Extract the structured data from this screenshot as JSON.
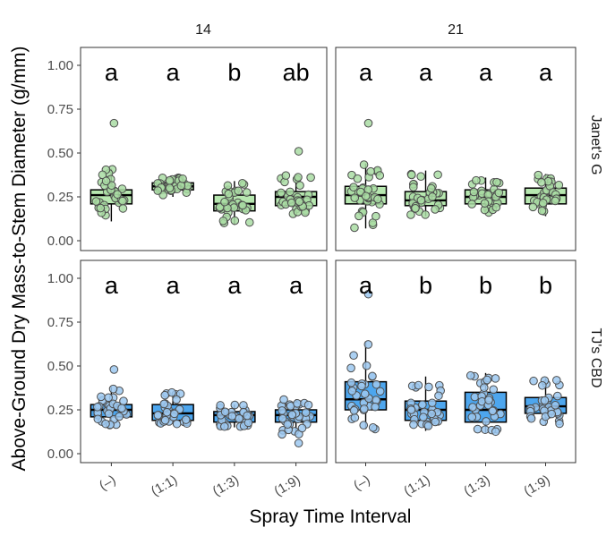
{
  "chart_data": {
    "type": "box",
    "xlabel": "Spray Time Interval",
    "ylabel": "Above-Ground Dry Mass-to-Stem Diameter (g/mm)",
    "ylim": [
      0,
      1.08
    ],
    "yticks": [
      "0.00",
      "0.25",
      "0.50",
      "0.75",
      "1.00"
    ],
    "categories": [
      "(–)",
      "(1:1)",
      "(1:3)",
      "(1:9)"
    ],
    "columns": [
      "14",
      "21"
    ],
    "rows": [
      "Janet's G",
      "TJ's CBD"
    ],
    "colors": {
      "Janet's G": "#b7e8b0",
      "TJ's CBD": "#4da6ee",
      "points_Janet's G": "#a9dca3",
      "points_TJ's CBD": "#9cc8f0"
    },
    "grid": false,
    "legend": "none",
    "panels": [
      {
        "column": "14",
        "row": "Janet's G",
        "letters": [
          "a",
          "a",
          "b",
          "ab"
        ],
        "boxes": [
          {
            "lower": 0.11,
            "q1": 0.21,
            "median": 0.26,
            "q3": 0.29,
            "upper": 0.41
          },
          {
            "lower": 0.25,
            "q1": 0.29,
            "median": 0.31,
            "q3": 0.33,
            "upper": 0.36
          },
          {
            "lower": 0.09,
            "q1": 0.17,
            "median": 0.21,
            "q3": 0.26,
            "upper": 0.34
          },
          {
            "lower": 0.14,
            "q1": 0.2,
            "median": 0.25,
            "q3": 0.28,
            "upper": 0.38
          }
        ],
        "outliers": [
          [
            0.67
          ],
          [],
          [],
          [
            0.51
          ]
        ]
      },
      {
        "column": "21",
        "row": "Janet's G",
        "letters": [
          "a",
          "a",
          "a",
          "a"
        ],
        "boxes": [
          {
            "lower": 0.07,
            "q1": 0.21,
            "median": 0.26,
            "q3": 0.31,
            "upper": 0.44
          },
          {
            "lower": 0.14,
            "q1": 0.2,
            "median": 0.23,
            "q3": 0.28,
            "upper": 0.4
          },
          {
            "lower": 0.15,
            "q1": 0.21,
            "median": 0.25,
            "q3": 0.29,
            "upper": 0.36
          },
          {
            "lower": 0.14,
            "q1": 0.21,
            "median": 0.26,
            "q3": 0.3,
            "upper": 0.38
          }
        ],
        "outliers": [
          [
            0.67
          ],
          [],
          [],
          []
        ]
      },
      {
        "column": "14",
        "row": "TJ's CBD",
        "letters": [
          "a",
          "a",
          "a",
          "a"
        ],
        "boxes": [
          {
            "lower": 0.16,
            "q1": 0.21,
            "median": 0.25,
            "q3": 0.28,
            "upper": 0.38
          },
          {
            "lower": 0.17,
            "q1": 0.19,
            "median": 0.23,
            "q3": 0.28,
            "upper": 0.35
          },
          {
            "lower": 0.15,
            "q1": 0.18,
            "median": 0.22,
            "q3": 0.24,
            "upper": 0.28
          },
          {
            "lower": 0.11,
            "q1": 0.18,
            "median": 0.22,
            "q3": 0.25,
            "upper": 0.31
          }
        ],
        "outliers": [
          [
            0.48
          ],
          [],
          [],
          [
            0.06
          ]
        ]
      },
      {
        "column": "21",
        "row": "TJ's CBD",
        "letters": [
          "a",
          "b",
          "b",
          "b"
        ],
        "boxes": [
          {
            "lower": 0.14,
            "q1": 0.25,
            "median": 0.31,
            "q3": 0.41,
            "upper": 0.64
          },
          {
            "lower": 0.13,
            "q1": 0.19,
            "median": 0.25,
            "q3": 0.3,
            "upper": 0.44
          },
          {
            "lower": 0.12,
            "q1": 0.18,
            "median": 0.25,
            "q3": 0.35,
            "upper": 0.46
          },
          {
            "lower": 0.16,
            "q1": 0.23,
            "median": 0.27,
            "q3": 0.32,
            "upper": 0.43
          }
        ],
        "outliers": [
          [
            0.91
          ],
          [],
          [],
          []
        ]
      }
    ]
  }
}
